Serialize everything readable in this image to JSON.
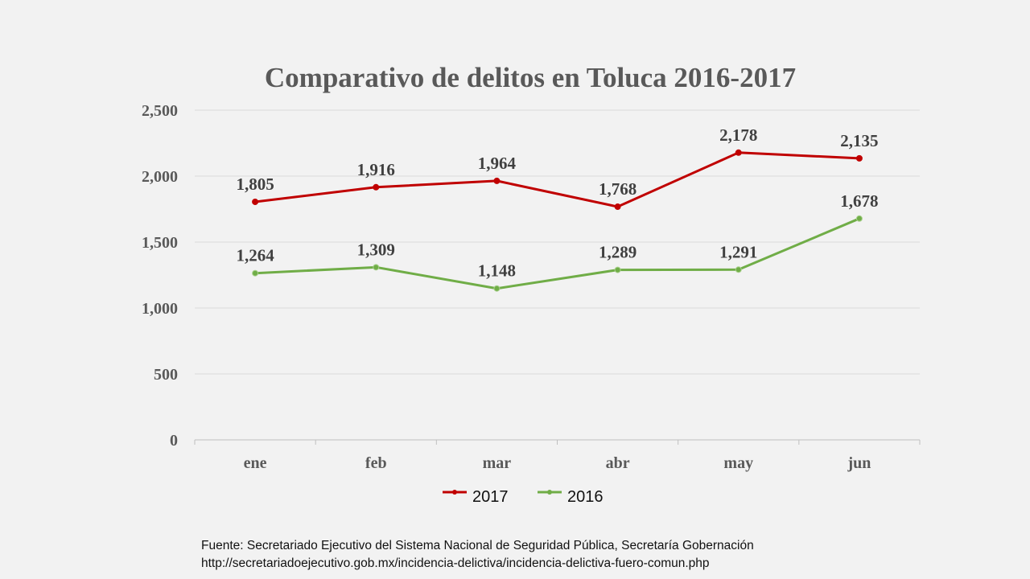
{
  "chart_data": {
    "type": "line",
    "title": "Comparativo de delitos en Toluca 2016-2017",
    "categories": [
      "ene",
      "feb",
      "mar",
      "abr",
      "may",
      "jun"
    ],
    "series": [
      {
        "name": "2017",
        "color": "#c00000",
        "values": [
          1805,
          1916,
          1964,
          1768,
          2178,
          2135
        ],
        "labels": [
          "1,805",
          "1,916",
          "1,964",
          "1,768",
          "2,178",
          "2,135"
        ]
      },
      {
        "name": "2016",
        "color": "#70ad47",
        "values": [
          1264,
          1309,
          1148,
          1289,
          1291,
          1678
        ],
        "labels": [
          "1,264",
          "1,309",
          "1,148",
          "1,289",
          "1,291",
          "1,678"
        ]
      }
    ],
    "yticks": [
      0,
      500,
      1000,
      1500,
      2000,
      2500
    ],
    "ytick_labels": [
      "0",
      "500",
      "1,000",
      "1,500",
      "2,000",
      "2,500"
    ],
    "ylim": [
      0,
      2500
    ],
    "xlabel": "",
    "ylabel": "",
    "grid": true,
    "legend": "bottom"
  },
  "source": {
    "line1": "Fuente: Secretariado Ejecutivo del Sistema Nacional de Seguridad Pública, Secretaría Gobernación",
    "line2": "http://secretariadoejecutivo.gob.mx/incidencia-delictiva/incidencia-delictiva-fuero-comun.php"
  }
}
